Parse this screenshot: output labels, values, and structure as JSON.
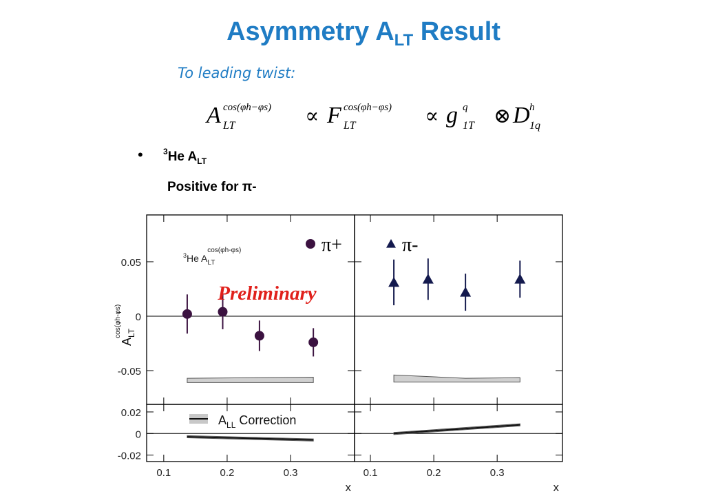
{
  "title": {
    "main": "Asymmetry A",
    "sub": "LT",
    "rest": " Result"
  },
  "subtitle": "To leading twist:",
  "formula": {
    "terms": [
      {
        "base": "A",
        "sub": "LT",
        "sup": "cos(φh−φs)"
      },
      {
        "base": "F",
        "sub": "LT",
        "sup": "cos(φh−φs)"
      },
      {
        "base": "g",
        "sub": "1T",
        "sup": "q"
      },
      {
        "base": "D",
        "sub": "1q",
        "sup": "h"
      }
    ],
    "ops": [
      "∝",
      "∝",
      "⊗"
    ]
  },
  "bullet": {
    "sup": "3",
    "text": "He A",
    "sub": "LT",
    "note": "Positive for π-"
  },
  "chart_data": [
    {
      "type": "errorbar",
      "xlim": [
        0.073,
        0.401
      ],
      "ylim": [
        -0.081,
        0.093
      ],
      "xticks": [
        0.1,
        0.2,
        0.3
      ],
      "yticks": [
        -0.05,
        0,
        0.05
      ],
      "xtick_labels": false,
      "ytick_labels": true,
      "zero_line": true,
      "ylabel": {
        "base": "A",
        "sub": "LT",
        "sup": "cos(φh-φs)"
      },
      "annotation": {
        "pre": "3",
        "base": "He A",
        "sub": "LT",
        "sup": "cos(φh-φs)"
      },
      "watermark": "Preliminary",
      "watermark_color": "#e0201b",
      "series": [
        {
          "name": "π+",
          "color": "#3b1240",
          "marker": "circle",
          "x": [
            0.137,
            0.193,
            0.251,
            0.336
          ],
          "values": [
            0.002,
            0.004,
            -0.018,
            -0.024
          ],
          "errors": [
            0.018,
            0.016,
            0.014,
            0.013
          ]
        }
      ],
      "band": {
        "x": [
          0.137,
          0.336
        ],
        "upper": [
          -0.057,
          -0.056
        ],
        "lower": [
          -0.061,
          -0.061
        ],
        "color": "#d0d0d0"
      }
    },
    {
      "type": "errorbar",
      "xlim": [
        0.075,
        0.403
      ],
      "ylim": [
        -0.081,
        0.093
      ],
      "xticks": [
        0.1,
        0.2,
        0.3
      ],
      "yticks": [
        -0.05,
        0,
        0.05
      ],
      "xtick_labels": false,
      "ytick_labels": false,
      "zero_line": true,
      "series": [
        {
          "name": "π-",
          "color": "#141a4e",
          "marker": "triangle",
          "x": [
            0.137,
            0.191,
            0.25,
            0.336
          ],
          "values": [
            0.031,
            0.034,
            0.022,
            0.034
          ],
          "errors": [
            0.021,
            0.019,
            0.017,
            0.017
          ]
        }
      ],
      "band": {
        "x": [
          0.137,
          0.25,
          0.336
        ],
        "upper": [
          -0.054,
          -0.057,
          -0.0565
        ],
        "lower": [
          -0.0605,
          -0.0605,
          -0.0605
        ],
        "color": "#d0d0d0"
      }
    },
    {
      "type": "line",
      "xlim": [
        0.073,
        0.401
      ],
      "ylim": [
        -0.026,
        0.027
      ],
      "xticks": [
        0.1,
        0.2,
        0.3
      ],
      "yticks": [
        -0.02,
        0,
        0.02
      ],
      "xtick_labels": true,
      "ytick_labels": true,
      "zero_line": true,
      "xlabel": "x",
      "series": [
        {
          "name": "A",
          "name_sub": "LL",
          "name_rest": " Correction",
          "color": "#111111",
          "x": [
            0.137,
            0.336
          ],
          "values": [
            -0.003,
            -0.006
          ]
        }
      ],
      "band": {
        "x": [
          0.137,
          0.336
        ],
        "upper": [
          -0.002,
          -0.005
        ],
        "lower": [
          -0.004,
          -0.007
        ],
        "color": "#c8c8c8"
      }
    },
    {
      "type": "line",
      "xlim": [
        0.075,
        0.403
      ],
      "ylim": [
        -0.026,
        0.027
      ],
      "xticks": [
        0.1,
        0.2,
        0.3
      ],
      "yticks": [
        -0.02,
        0,
        0.02
      ],
      "xtick_labels": true,
      "ytick_labels": false,
      "zero_line": true,
      "xlabel": "x",
      "series": [
        {
          "color": "#111111",
          "x": [
            0.137,
            0.336
          ],
          "values": [
            0.0,
            0.008
          ]
        }
      ],
      "band": {
        "x": [
          0.137,
          0.336
        ],
        "upper": [
          0.001,
          0.009
        ],
        "lower": [
          -0.001,
          0.007
        ],
        "color": "#c8c8c8"
      }
    }
  ]
}
